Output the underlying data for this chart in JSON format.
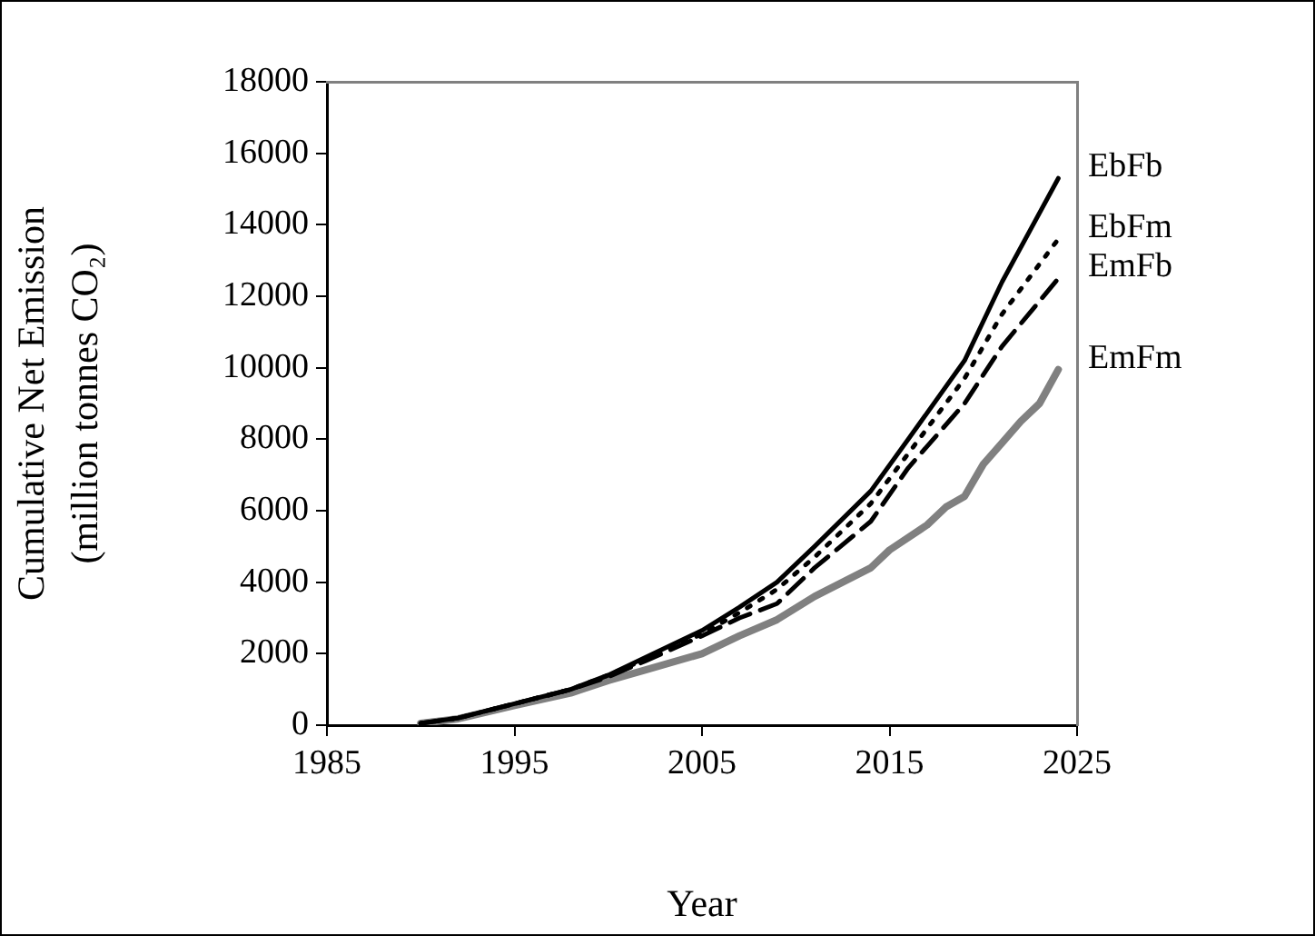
{
  "chart_data": {
    "type": "line",
    "xlabel": "Year",
    "ylabel": "Cumulative Net Emission\n(million tonnes CO₂)",
    "xlim": [
      1985,
      2025
    ],
    "xticks": [
      1985,
      1995,
      2005,
      2015,
      2025
    ],
    "ylim": [
      0,
      18000
    ],
    "yticks": [
      0,
      2000,
      4000,
      6000,
      8000,
      10000,
      12000,
      14000,
      16000,
      18000
    ],
    "grid": false,
    "legend": false,
    "marker": "none",
    "series": [
      {
        "name": "EbFb",
        "color": "#000000",
        "line_style": "solid",
        "x": [
          1990,
          1992,
          1995,
          1998,
          2000,
          2002,
          2005,
          2007,
          2009,
          2011,
          2014,
          2016,
          2019,
          2021,
          2024
        ],
        "values": [
          50,
          200,
          600,
          1000,
          1400,
          1900,
          2650,
          3300,
          4000,
          5000,
          6550,
          8000,
          10200,
          12400,
          15300
        ]
      },
      {
        "name": "EbFm",
        "color": "#000000",
        "line_style": "dotted",
        "x": [
          1990,
          1992,
          1995,
          1998,
          2000,
          2002,
          2005,
          2007,
          2009,
          2011,
          2014,
          2016,
          2019,
          2021,
          2024
        ],
        "values": [
          50,
          200,
          600,
          1000,
          1400,
          1850,
          2550,
          3150,
          3800,
          4700,
          6200,
          7600,
          9700,
          11500,
          13600
        ]
      },
      {
        "name": "EmFb",
        "color": "#000000",
        "line_style": "dashed",
        "x": [
          1990,
          1992,
          1995,
          1998,
          2000,
          2002,
          2005,
          2007,
          2009,
          2011,
          2014,
          2016,
          2019,
          2021,
          2024
        ],
        "values": [
          50,
          200,
          600,
          1000,
          1350,
          1800,
          2500,
          3000,
          3400,
          4400,
          5700,
          7200,
          9000,
          10600,
          12500
        ]
      },
      {
        "name": "EmFm",
        "color": "#808080",
        "line_style": "solid",
        "x": [
          1990,
          1992,
          1995,
          1998,
          2000,
          2002,
          2005,
          2007,
          2009,
          2011,
          2014,
          2015,
          2017,
          2018,
          2019,
          2020,
          2021,
          2022,
          2023,
          2024
        ],
        "values": [
          50,
          180,
          550,
          900,
          1250,
          1550,
          2000,
          2500,
          2950,
          3600,
          4400,
          4900,
          5600,
          6100,
          6400,
          7300,
          7900,
          8500,
          9000,
          9950
        ]
      }
    ]
  }
}
